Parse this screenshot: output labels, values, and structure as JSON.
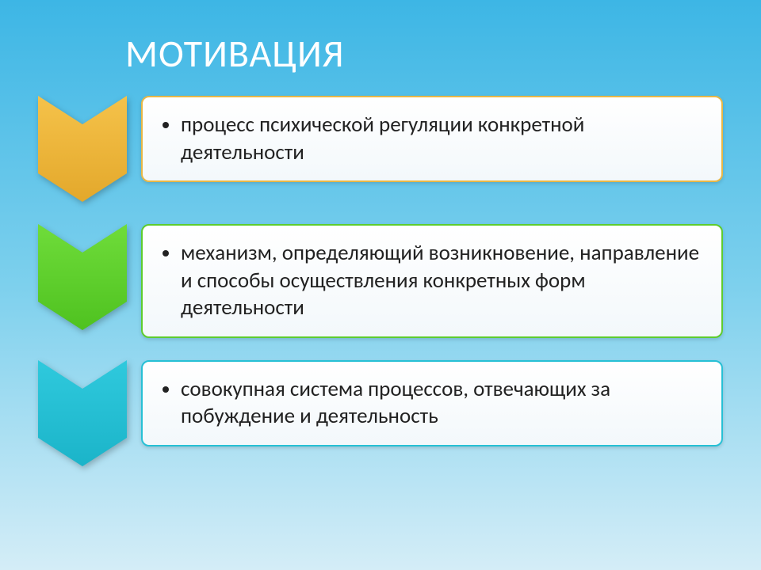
{
  "title": "МОТИВАЦИЯ",
  "title_fontsize": 48,
  "title_color": "#ffffff",
  "background_gradient": {
    "top": "#3db6e5",
    "mid": "#7dd0ed",
    "bottom": "#d4edf7"
  },
  "body_fontsize": 27,
  "body_color": "#222222",
  "items": [
    {
      "label": "процесс психической регуляции конкретной деятельности",
      "chevron_fill_top": "#f5c24a",
      "chevron_fill_bottom": "#e3a82b",
      "box_border_color": "#e8b746",
      "box_background_top": "#ffffff",
      "box_background_bottom": "#f3f8fb"
    },
    {
      "label": "механизм, определяющий возникновение, направление и способы осуществления конкретных форм деятельности",
      "chevron_fill_top": "#6fdc3a",
      "chevron_fill_bottom": "#4fc220",
      "box_border_color": "#5ecc2e",
      "box_background_top": "#ffffff",
      "box_background_bottom": "#f3f8fb"
    },
    {
      "label": "совокупная система процессов, отвечающих за побуждение и деятельность",
      "chevron_fill_top": "#2fc9dd",
      "chevron_fill_bottom": "#1bb4c9",
      "box_border_color": "#27c0d5",
      "box_background_top": "#ffffff",
      "box_background_bottom": "#f3f8fb"
    }
  ],
  "chevron": {
    "width": 112,
    "height": 134,
    "notch_depth": 36
  },
  "box_border_radius": 10,
  "row_gap": 28
}
